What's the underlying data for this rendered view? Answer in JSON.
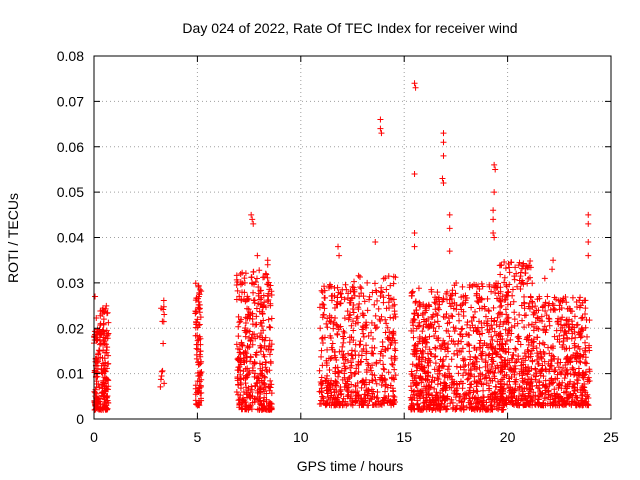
{
  "chart_data": {
    "type": "scatter",
    "title": "Day 024 of 2022, Rate Of TEC Index for receiver wind",
    "xlabel": "GPS time / hours",
    "ylabel": "ROTI / TECUs",
    "xlim": [
      0,
      25
    ],
    "ylim": [
      0,
      0.08
    ],
    "x_ticks": [
      "0",
      "5",
      "10",
      "15",
      "20",
      "25"
    ],
    "y_ticks": [
      "0",
      "0.01",
      "0.02",
      "0.03",
      "0.04",
      "0.05",
      "0.06",
      "0.07",
      "0.08"
    ],
    "grid": true,
    "marker": "+",
    "colors": {
      "points": "#ff0000",
      "grid": "#a0a0a0",
      "axes": "#000000"
    },
    "series": [
      {
        "clusters": [
          {
            "x": [
              0.0,
              0.7
            ],
            "y": [
              0.002,
              0.025
            ],
            "n": 220
          },
          {
            "x": [
              3.2,
              3.4
            ],
            "y": [
              0.007,
              0.029
            ],
            "n": 14
          },
          {
            "x": [
              4.9,
              5.2
            ],
            "y": [
              0.003,
              0.03
            ],
            "n": 90
          },
          {
            "x": [
              6.9,
              8.6
            ],
            "y": [
              0.002,
              0.033
            ],
            "n": 380
          },
          {
            "x": [
              10.9,
              12.5
            ],
            "y": [
              0.003,
              0.03
            ],
            "n": 260
          },
          {
            "x": [
              12.5,
              14.6
            ],
            "y": [
              0.003,
              0.032
            ],
            "n": 300
          },
          {
            "x": [
              15.3,
              17.4
            ],
            "y": [
              0.002,
              0.029
            ],
            "n": 420
          },
          {
            "x": [
              17.4,
              19.8
            ],
            "y": [
              0.002,
              0.03
            ],
            "n": 420
          },
          {
            "x": [
              19.6,
              21.2
            ],
            "y": [
              0.003,
              0.035
            ],
            "n": 340
          },
          {
            "x": [
              21.2,
              24.0
            ],
            "y": [
              0.003,
              0.027
            ],
            "n": 480
          }
        ],
        "points": [
          {
            "x": 0.05,
            "y": 0.027
          },
          {
            "x": 7.6,
            "y": 0.045
          },
          {
            "x": 7.65,
            "y": 0.044
          },
          {
            "x": 7.7,
            "y": 0.043
          },
          {
            "x": 11.8,
            "y": 0.038
          },
          {
            "x": 11.85,
            "y": 0.036
          },
          {
            "x": 13.6,
            "y": 0.039
          },
          {
            "x": 13.85,
            "y": 0.066
          },
          {
            "x": 13.85,
            "y": 0.064
          },
          {
            "x": 13.9,
            "y": 0.063
          },
          {
            "x": 15.5,
            "y": 0.074
          },
          {
            "x": 15.55,
            "y": 0.073
          },
          {
            "x": 15.5,
            "y": 0.054
          },
          {
            "x": 15.5,
            "y": 0.041
          },
          {
            "x": 15.5,
            "y": 0.038
          },
          {
            "x": 16.9,
            "y": 0.063
          },
          {
            "x": 16.9,
            "y": 0.061
          },
          {
            "x": 16.9,
            "y": 0.058
          },
          {
            "x": 16.85,
            "y": 0.053
          },
          {
            "x": 16.9,
            "y": 0.052
          },
          {
            "x": 17.2,
            "y": 0.045
          },
          {
            "x": 17.2,
            "y": 0.042
          },
          {
            "x": 17.2,
            "y": 0.037
          },
          {
            "x": 19.35,
            "y": 0.056
          },
          {
            "x": 19.4,
            "y": 0.055
          },
          {
            "x": 19.35,
            "y": 0.05
          },
          {
            "x": 19.3,
            "y": 0.046
          },
          {
            "x": 19.3,
            "y": 0.044
          },
          {
            "x": 19.3,
            "y": 0.041
          },
          {
            "x": 19.35,
            "y": 0.04
          },
          {
            "x": 23.9,
            "y": 0.045
          },
          {
            "x": 23.9,
            "y": 0.043
          },
          {
            "x": 23.9,
            "y": 0.039
          },
          {
            "x": 23.9,
            "y": 0.036
          },
          {
            "x": 8.4,
            "y": 0.035
          },
          {
            "x": 8.4,
            "y": 0.034
          },
          {
            "x": 7.9,
            "y": 0.036
          },
          {
            "x": 22.2,
            "y": 0.035
          },
          {
            "x": 22.15,
            "y": 0.033
          },
          {
            "x": 21.8,
            "y": 0.031
          }
        ]
      }
    ]
  }
}
